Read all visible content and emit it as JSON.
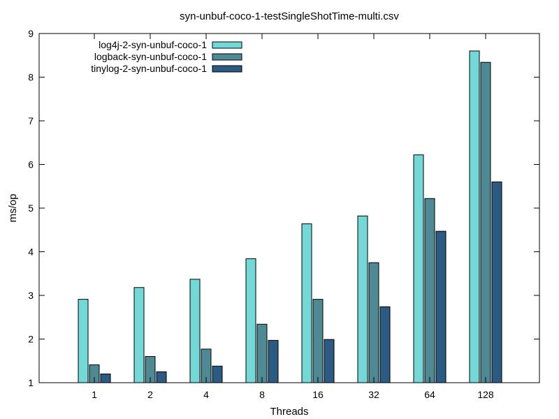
{
  "chart_data": {
    "type": "bar",
    "title": "syn-unbuf-coco-1-testSingleShotTime-multi.csv",
    "xlabel": "Threads",
    "ylabel": "ms/op",
    "ylim": [
      1,
      9
    ],
    "yticks": [
      1,
      2,
      3,
      4,
      5,
      6,
      7,
      8,
      9
    ],
    "categories": [
      "1",
      "2",
      "4",
      "8",
      "16",
      "32",
      "64",
      "128"
    ],
    "grid": false,
    "legend_position": "top-left",
    "series": [
      {
        "name": "log4j-2-syn-unbuf-coco-1",
        "color": "#72d8d8",
        "values": [
          2.91,
          3.18,
          3.37,
          3.84,
          4.64,
          4.82,
          6.22,
          8.6
        ]
      },
      {
        "name": "logback-syn-unbuf-coco-1",
        "color": "#4e8a95",
        "values": [
          1.41,
          1.6,
          1.77,
          2.34,
          2.91,
          3.75,
          5.22,
          8.34
        ]
      },
      {
        "name": "tinylog-2-syn-unbuf-coco-1",
        "color": "#2b5a82",
        "values": [
          1.2,
          1.25,
          1.38,
          1.97,
          1.99,
          2.74,
          4.47,
          5.6
        ]
      }
    ]
  }
}
